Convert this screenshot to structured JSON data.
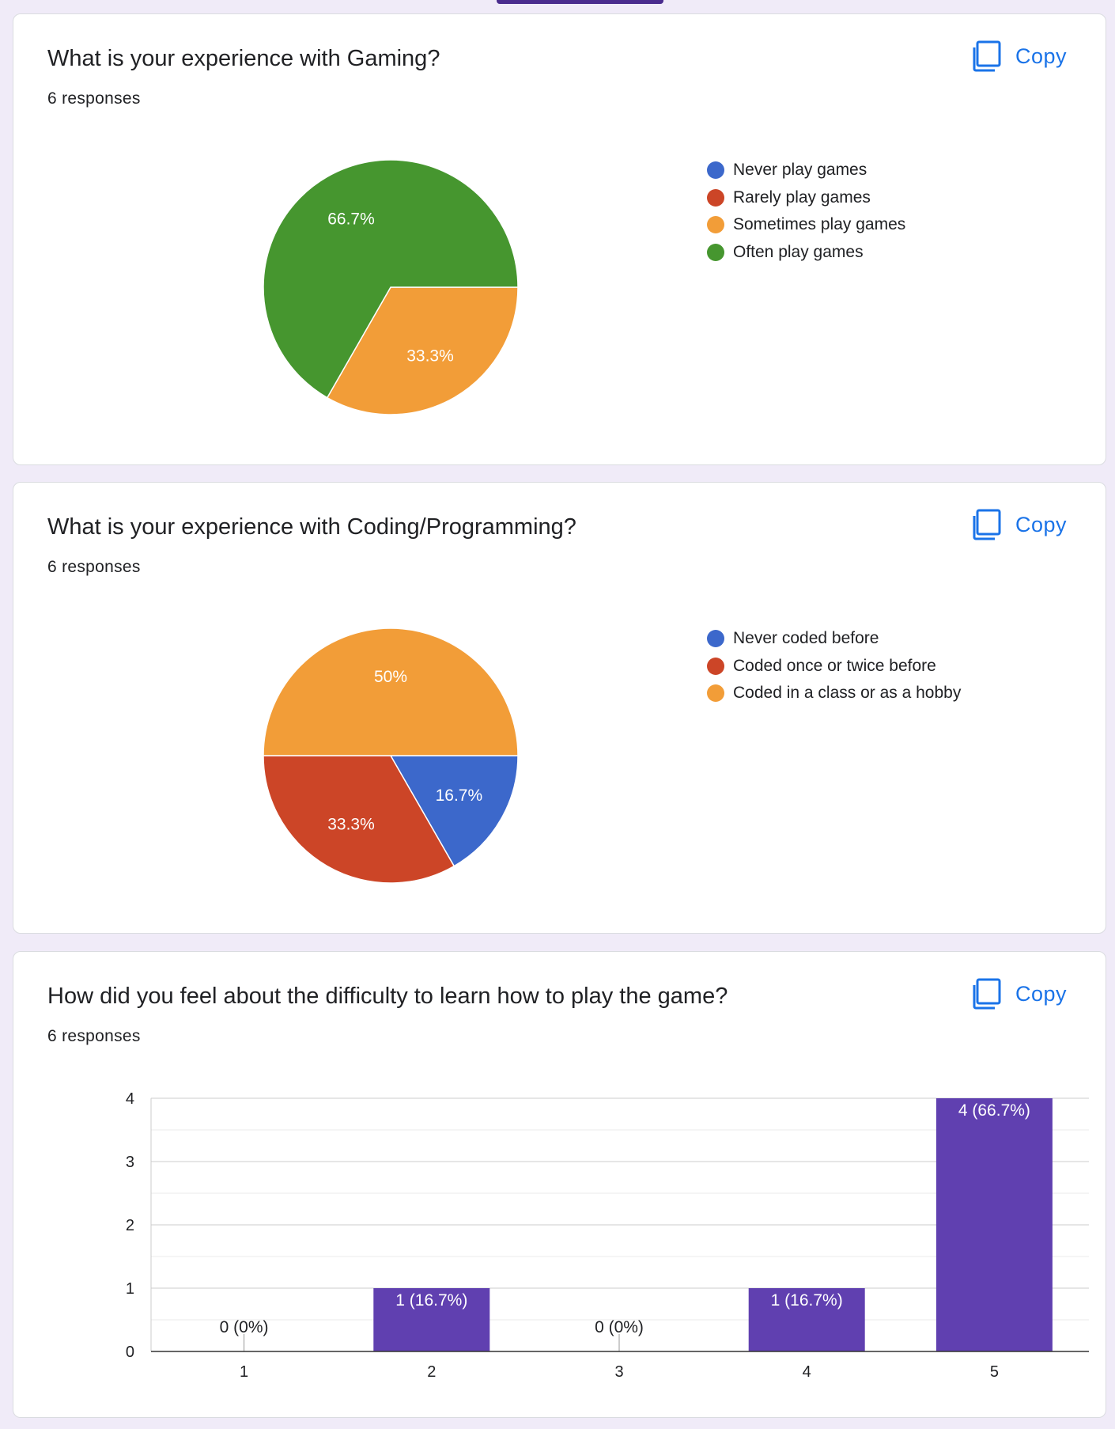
{
  "cards": [
    {
      "title": "What is your experience with Gaming?",
      "responses": "6 responses",
      "copy_label": "Copy"
    },
    {
      "title": "What is your experience with Coding/Programming?",
      "responses": "6 responses",
      "copy_label": "Copy"
    },
    {
      "title": "How did you feel about the difficulty to learn how to play the game?",
      "responses": "6 responses",
      "copy_label": "Copy"
    }
  ],
  "colors": {
    "blue": "#3c68cb",
    "red": "#cc4527",
    "orange": "#f29d38",
    "green": "#46962f",
    "purple": "#6040b0",
    "accent": "#1a73e8"
  },
  "chart_data": [
    {
      "type": "pie",
      "title": "What is your experience with Gaming?",
      "categories": [
        "Never play games",
        "Rarely play games",
        "Sometimes play games",
        "Often play games"
      ],
      "values": [
        0,
        0,
        33.3,
        66.7
      ],
      "labels": [
        "",
        "",
        "33.3%",
        "66.7%"
      ],
      "colors": [
        "#3c68cb",
        "#cc4527",
        "#f29d38",
        "#46962f"
      ],
      "legend": "right"
    },
    {
      "type": "pie",
      "title": "What is your experience with Coding/Programming?",
      "categories": [
        "Never coded before",
        "Coded once or twice before",
        "Coded in a class or as a hobby"
      ],
      "values": [
        16.7,
        33.3,
        50
      ],
      "labels": [
        "16.7%",
        "33.3%",
        "50%"
      ],
      "colors": [
        "#3c68cb",
        "#cc4527",
        "#f29d38"
      ],
      "legend": "right"
    },
    {
      "type": "bar",
      "title": "How did you feel about the difficulty to learn how to play the game?",
      "categories": [
        "1",
        "2",
        "3",
        "4",
        "5"
      ],
      "values": [
        0,
        1,
        0,
        1,
        4
      ],
      "labels": [
        "0 (0%)",
        "1 (16.7%)",
        "0 (0%)",
        "1 (16.7%)",
        "4 (66.7%)"
      ],
      "yticks": [
        "0",
        "1",
        "2",
        "3",
        "4"
      ],
      "ylim": [
        0,
        4
      ],
      "color": "#6040b0",
      "grid": true
    }
  ]
}
